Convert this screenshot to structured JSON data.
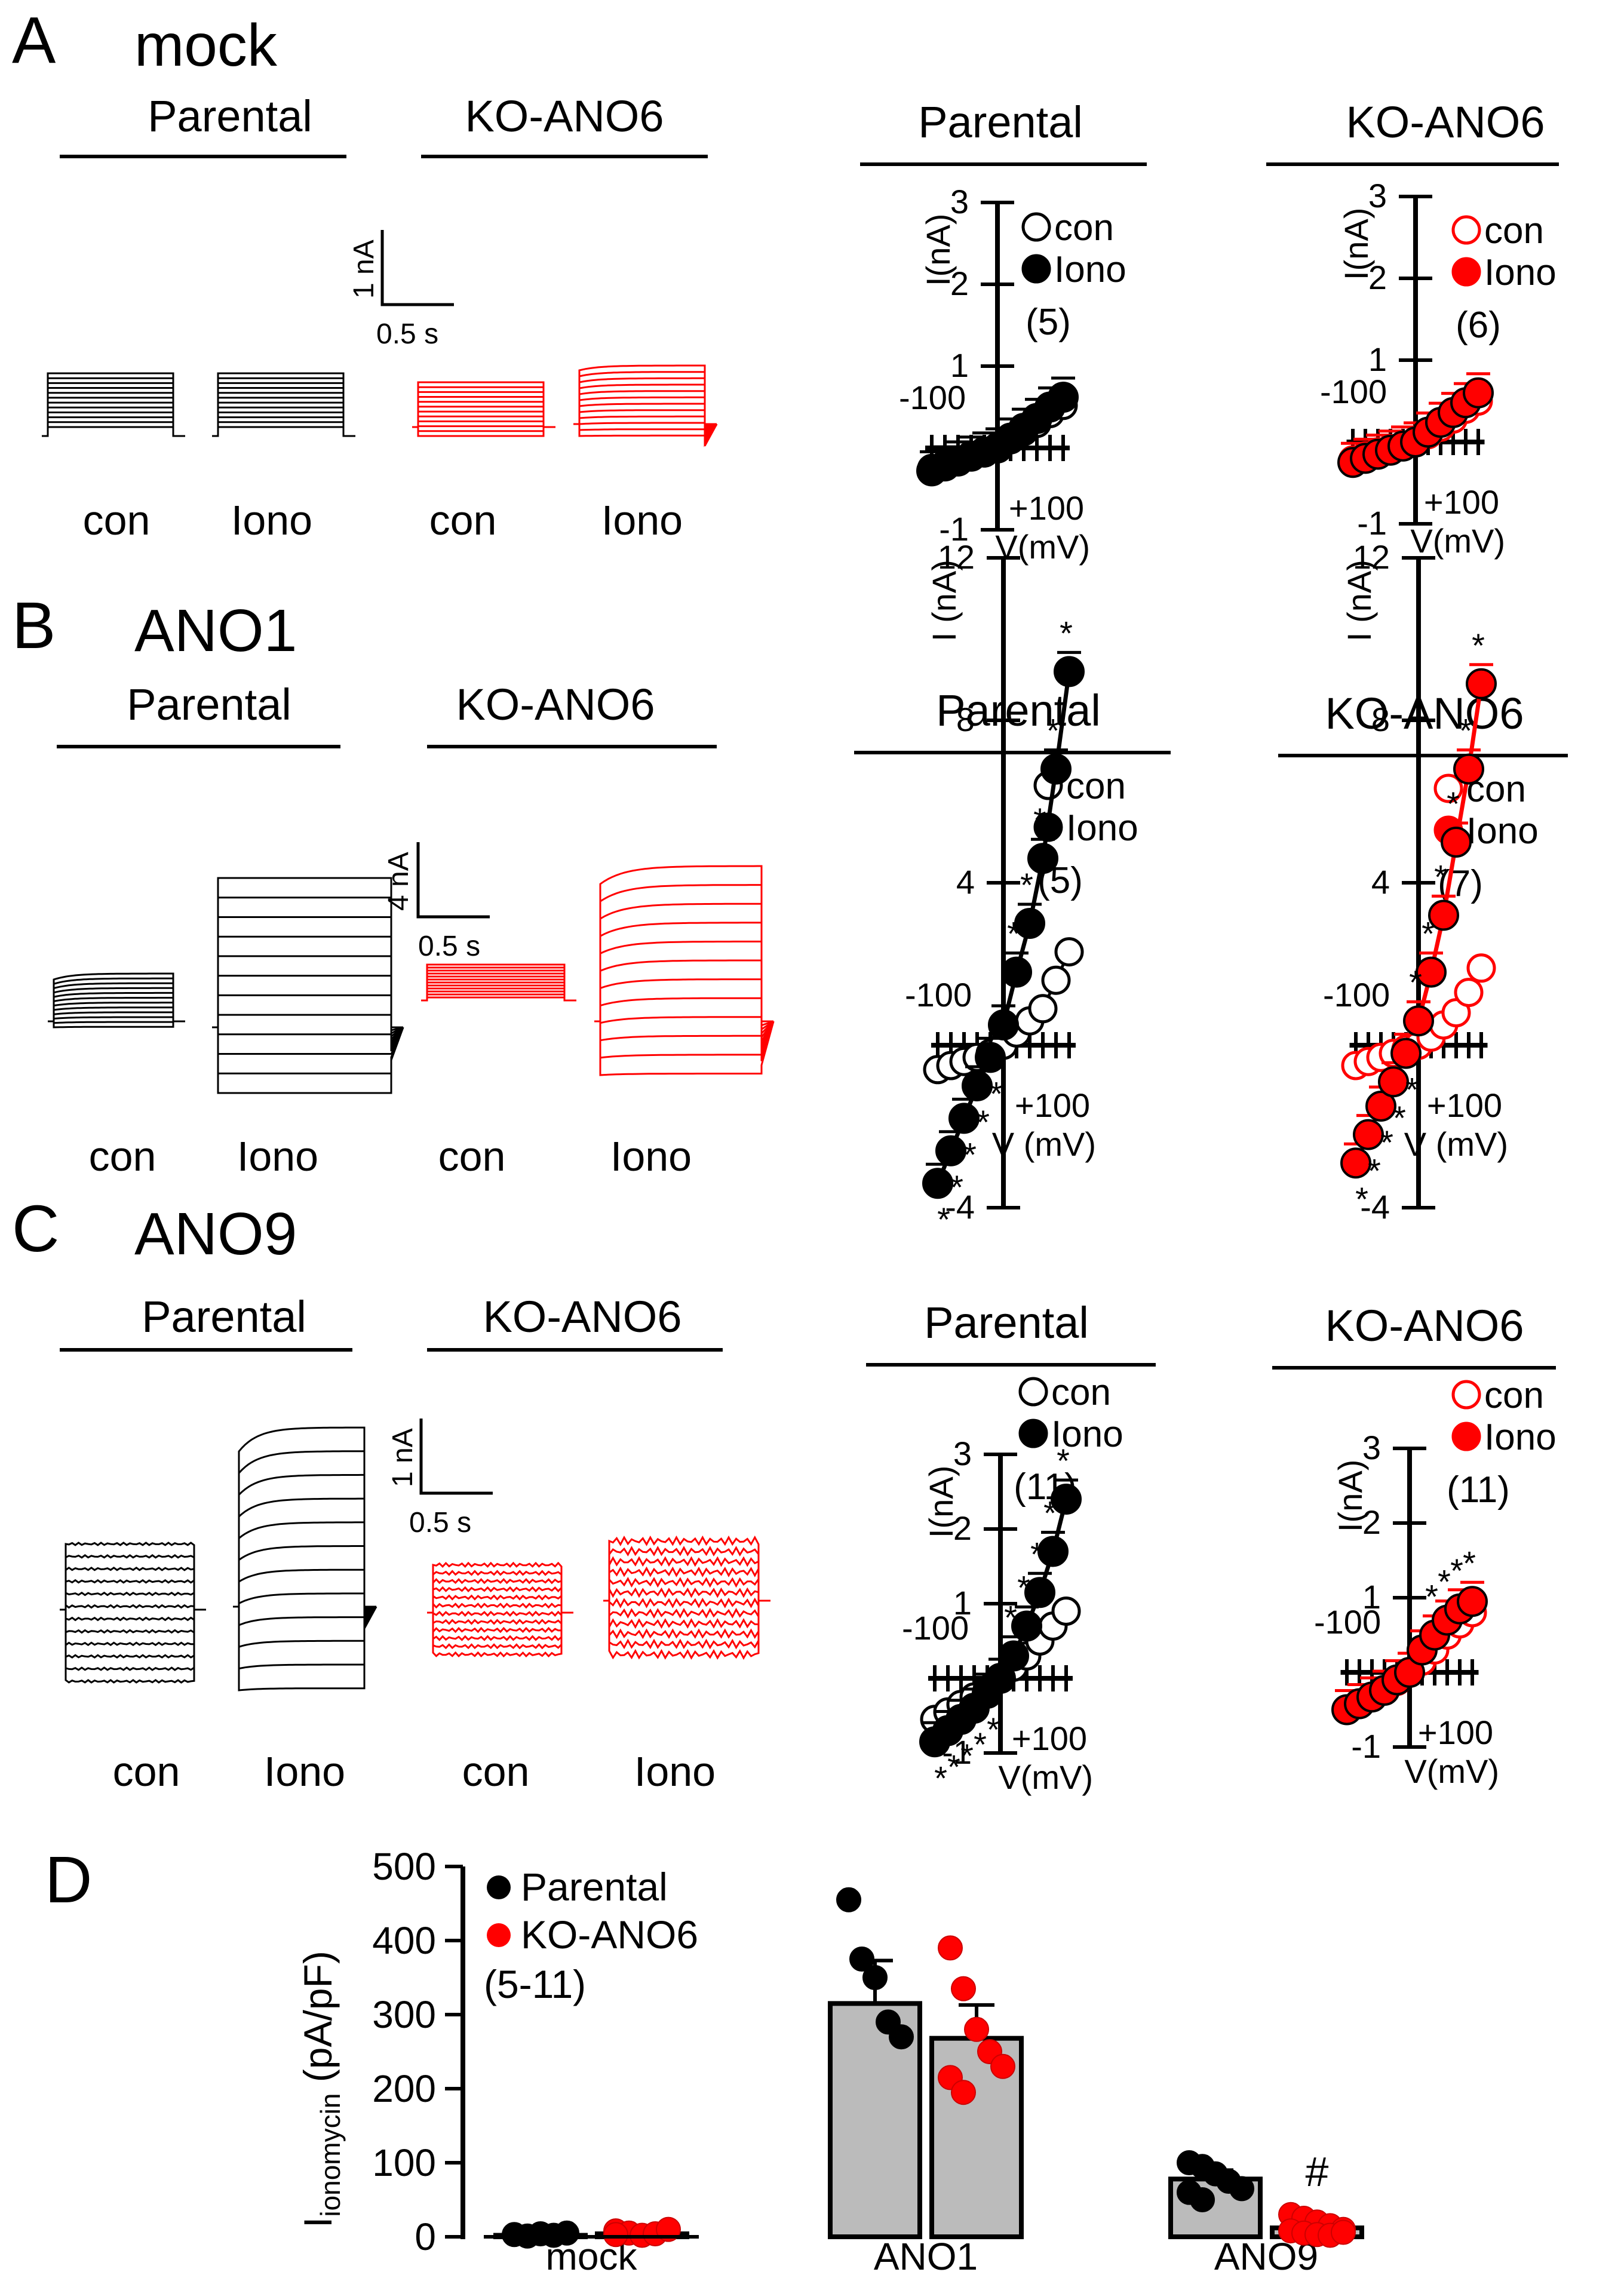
{
  "colors": {
    "black": "#000000",
    "red": "#ff0000",
    "bar": "#bbbbbb"
  },
  "panels": [
    {
      "letter": "A",
      "name": "mock",
      "traces": {
        "groups": [
          "Parental",
          "KO-ANO6"
        ],
        "conditions": [
          "con",
          "Iono",
          "con",
          "Iono"
        ],
        "scale": {
          "y": "1 nA",
          "x": "0.5 s"
        }
      },
      "iv": [
        {
          "title": "Parental",
          "color": "black",
          "n": "(5)",
          "legend": [
            "con",
            "Iono"
          ],
          "ylim": [
            -1,
            3
          ],
          "yticks": [
            "3",
            "2",
            "1",
            "-1"
          ],
          "xmin_label": "-100",
          "xmax_label": "+100",
          "xlabel": "V(mV)",
          "ylabel": "I(nA)",
          "v": [
            -100,
            -80,
            -60,
            -40,
            -20,
            0,
            20,
            40,
            60,
            80,
            100
          ],
          "con": [
            -0.25,
            -0.2,
            -0.15,
            -0.1,
            -0.06,
            0,
            0.1,
            0.2,
            0.3,
            0.42,
            0.52
          ],
          "iono": [
            -0.28,
            -0.22,
            -0.16,
            -0.1,
            -0.05,
            0,
            0.12,
            0.24,
            0.36,
            0.5,
            0.62
          ],
          "stars": []
        },
        {
          "title": "KO-ANO6",
          "color": "red",
          "n": "(6)",
          "legend": [
            "con",
            "Iono"
          ],
          "ylim": [
            -1,
            3
          ],
          "yticks": [
            "3",
            "2",
            "1",
            "-1"
          ],
          "xmin_label": "-100",
          "xmax_label": "+100",
          "xlabel": "V(mV)",
          "ylabel": "I(nA)",
          "v": [
            -100,
            -80,
            -60,
            -40,
            -20,
            0,
            20,
            40,
            60,
            80,
            100
          ],
          "con": [
            -0.22,
            -0.17,
            -0.12,
            -0.08,
            -0.04,
            0,
            0.09,
            0.18,
            0.28,
            0.4,
            0.5
          ],
          "iono": [
            -0.25,
            -0.2,
            -0.15,
            -0.1,
            -0.05,
            0,
            0.12,
            0.24,
            0.36,
            0.48,
            0.6
          ],
          "stars": []
        }
      ]
    },
    {
      "letter": "B",
      "name": "ANO1",
      "traces": {
        "groups": [
          "Parental",
          "KO-ANO6"
        ],
        "conditions": [
          "con",
          "Iono",
          "con",
          "Iono"
        ],
        "scale": {
          "y": "4 nA",
          "x": "0.5 s"
        }
      },
      "iv": [
        {
          "title": "Parental",
          "color": "black",
          "n": "(5)",
          "legend": [
            "con",
            "Iono"
          ],
          "ylim": [
            -4,
            12
          ],
          "yticks": [
            "12",
            "8",
            "4",
            "-4"
          ],
          "xmin_label": "-100",
          "xmax_label": "+100",
          "xlabel": "V (mV)",
          "ylabel": "I (nA)",
          "v": [
            -100,
            -80,
            -60,
            -40,
            -20,
            0,
            20,
            40,
            60,
            80,
            100
          ],
          "con": [
            -0.6,
            -0.5,
            -0.4,
            -0.3,
            -0.2,
            0,
            0.3,
            0.6,
            0.9,
            1.6,
            2.3
          ],
          "iono": [
            -3.4,
            -2.6,
            -1.8,
            -1.0,
            -0.3,
            0.5,
            1.8,
            3.0,
            4.6,
            6.8,
            9.2
          ],
          "stars": [
            "*",
            "*",
            "*",
            "*",
            "*",
            "",
            "*",
            "*",
            "*",
            "*",
            "*"
          ]
        },
        {
          "title": "KO-ANO6",
          "color": "red",
          "n": "(7)",
          "legend": [
            "con",
            "Iono"
          ],
          "ylim": [
            -4,
            12
          ],
          "yticks": [
            "12",
            "8",
            "4",
            "-4"
          ],
          "xmin_label": "-100",
          "xmax_label": "+100",
          "xlabel": "V (mV)",
          "ylabel": "I (nA)",
          "v": [
            -100,
            -80,
            -60,
            -40,
            -20,
            0,
            20,
            40,
            60,
            80,
            100
          ],
          "con": [
            -0.5,
            -0.4,
            -0.3,
            -0.2,
            -0.1,
            0,
            0.2,
            0.5,
            0.8,
            1.3,
            1.9
          ],
          "iono": [
            -2.9,
            -2.2,
            -1.5,
            -0.9,
            -0.2,
            0.6,
            1.8,
            3.2,
            5.0,
            6.8,
            8.9
          ],
          "stars": [
            "*",
            "*",
            "*",
            "*",
            "*",
            "*",
            "*",
            "*",
            "*",
            "*",
            "*"
          ]
        }
      ]
    },
    {
      "letter": "C",
      "name": "ANO9",
      "traces": {
        "groups": [
          "Parental",
          "KO-ANO6"
        ],
        "conditions": [
          "con",
          "Iono",
          "con",
          "Iono"
        ],
        "scale": {
          "y": "1 nA",
          "x": "0.5 s"
        }
      },
      "iv": [
        {
          "title": "Parental",
          "color": "black",
          "n": "(11)",
          "legend": [
            "con",
            "Iono"
          ],
          "ylim": [
            -1,
            3
          ],
          "yticks": [
            "3",
            "2",
            "1",
            "-1"
          ],
          "xmin_label": "-100",
          "xmax_label": "+100",
          "xlabel": "V(mV)",
          "ylabel": "I(nA)",
          "v": [
            -100,
            -80,
            -60,
            -40,
            -20,
            0,
            20,
            40,
            60,
            80,
            100
          ],
          "con": [
            -0.55,
            -0.45,
            -0.35,
            -0.25,
            -0.15,
            0,
            0.15,
            0.3,
            0.5,
            0.7,
            0.9
          ],
          "iono": [
            -0.85,
            -0.7,
            -0.55,
            -0.4,
            -0.2,
            0,
            0.3,
            0.7,
            1.15,
            1.7,
            2.4
          ],
          "stars": [
            "*",
            "*",
            "*",
            "*",
            "*",
            "",
            "*",
            "*",
            "*",
            "*",
            "*"
          ]
        },
        {
          "title": "KO-ANO6",
          "color": "red",
          "n": "(11)",
          "legend": [
            "con",
            "Iono"
          ],
          "ylim": [
            -1,
            3
          ],
          "yticks": [
            "3",
            "2",
            "1",
            "-1"
          ],
          "xmin_label": "-100",
          "xmax_label": "+100",
          "xlabel": "V(mV)",
          "ylabel": "I(nA)",
          "v": [
            -100,
            -80,
            -60,
            -40,
            -20,
            0,
            20,
            40,
            60,
            80,
            100
          ],
          "con": [
            -0.5,
            -0.42,
            -0.33,
            -0.24,
            -0.12,
            0,
            0.15,
            0.3,
            0.5,
            0.65,
            0.8
          ],
          "iono": [
            -0.5,
            -0.42,
            -0.33,
            -0.24,
            -0.1,
            0,
            0.3,
            0.5,
            0.7,
            0.85,
            0.95
          ],
          "stars": [
            "",
            "",
            "",
            "",
            "",
            "",
            "",
            "*",
            "*",
            "*",
            "*"
          ]
        }
      ]
    }
  ],
  "chart_data": {
    "type": "bar",
    "title": "D",
    "ylabel_main": "I",
    "ylabel_sub": "ionomycin",
    "ylabel_unit": " (pA/pF)",
    "ylim": [
      0,
      500
    ],
    "yticks": [
      "0",
      "100",
      "200",
      "300",
      "400",
      "500"
    ],
    "legend": [
      "Parental",
      "KO-ANO6"
    ],
    "n_label": "(5-11)",
    "categories": [
      "mock",
      "ANO1",
      "ANO9"
    ],
    "series": [
      {
        "name": "Parental",
        "values": [
          2,
          315,
          78
        ],
        "errors": [
          1,
          58,
          12
        ],
        "points": [
          [
            3,
            1,
            4,
            2,
            5
          ],
          [
            455,
            375,
            350,
            290,
            270
          ],
          [
            100,
            95,
            85,
            75,
            65,
            60,
            50
          ]
        ]
      },
      {
        "name": "KO-ANO6",
        "values": [
          4,
          268,
          12
        ],
        "errors": [
          1,
          45,
          4
        ],
        "points": [
          [
            8,
            5,
            2,
            4,
            10,
            3
          ],
          [
            390,
            335,
            280,
            250,
            230,
            215,
            195
          ],
          [
            30,
            25,
            20,
            15,
            10,
            8,
            5,
            3,
            2,
            6
          ]
        ]
      }
    ],
    "significance": [
      "",
      "",
      "#"
    ]
  }
}
